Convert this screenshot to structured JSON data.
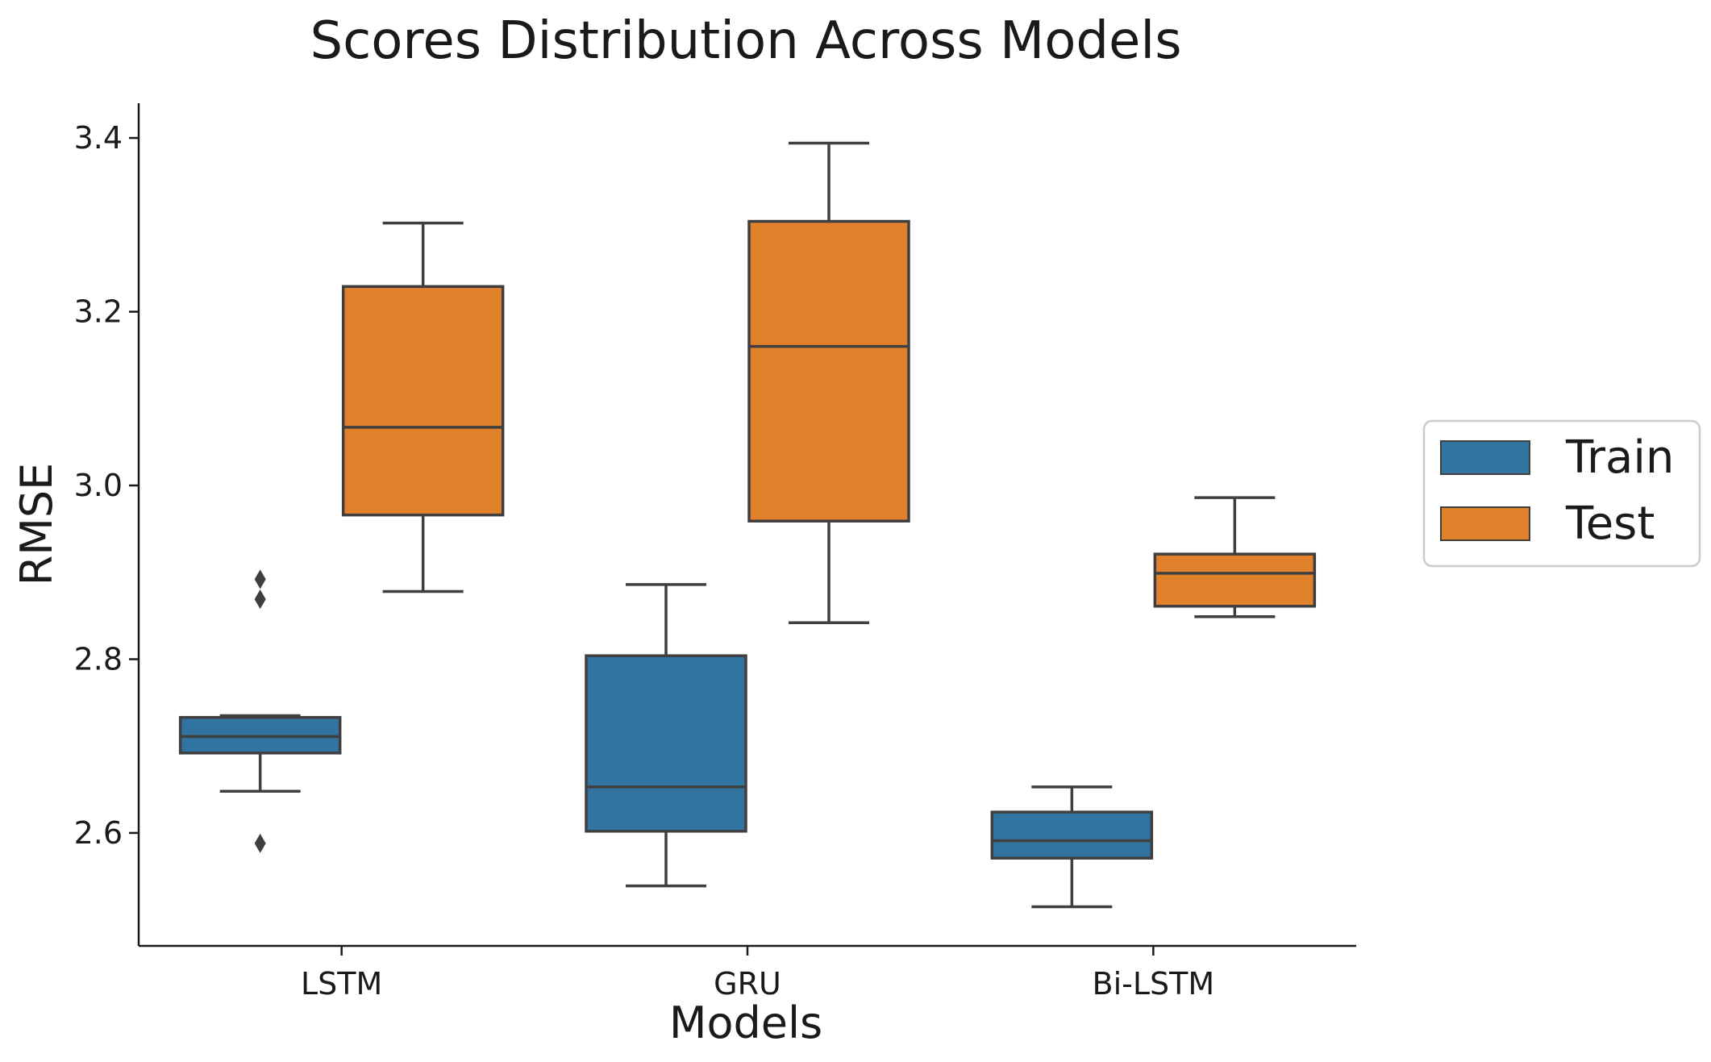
{
  "chart_data": {
    "type": "box",
    "title": "Scores Distribution Across Models",
    "xlabel": "Models",
    "ylabel": "RMSE",
    "ylim": [
      2.47,
      3.44
    ],
    "yticks": [
      "2.6",
      "2.8",
      "3.0",
      "3.2",
      "3.4"
    ],
    "categories": [
      "LSTM",
      "GRU",
      "Bi-LSTM"
    ],
    "legend_position": "right",
    "series": [
      {
        "name": "Train",
        "color": "#3274a1",
        "boxes": [
          {
            "whisker_low": 2.648,
            "q1": 2.692,
            "median": 2.711,
            "q3": 2.733,
            "whisker_high": 2.735,
            "outliers": [
              2.588,
              2.869,
              2.892
            ]
          },
          {
            "whisker_low": 2.539,
            "q1": 2.602,
            "median": 2.653,
            "q3": 2.804,
            "whisker_high": 2.886,
            "outliers": []
          },
          {
            "whisker_low": 2.515,
            "q1": 2.571,
            "median": 2.591,
            "q3": 2.624,
            "whisker_high": 2.653,
            "outliers": []
          }
        ]
      },
      {
        "name": "Test",
        "color": "#e1812c",
        "boxes": [
          {
            "whisker_low": 2.878,
            "q1": 2.966,
            "median": 3.067,
            "q3": 3.229,
            "whisker_high": 3.302,
            "outliers": []
          },
          {
            "whisker_low": 2.842,
            "q1": 2.959,
            "median": 3.16,
            "q3": 3.304,
            "whisker_high": 3.394,
            "outliers": []
          },
          {
            "whisker_low": 2.849,
            "q1": 2.861,
            "median": 2.899,
            "q3": 2.921,
            "whisker_high": 2.986,
            "outliers": []
          }
        ]
      }
    ]
  }
}
